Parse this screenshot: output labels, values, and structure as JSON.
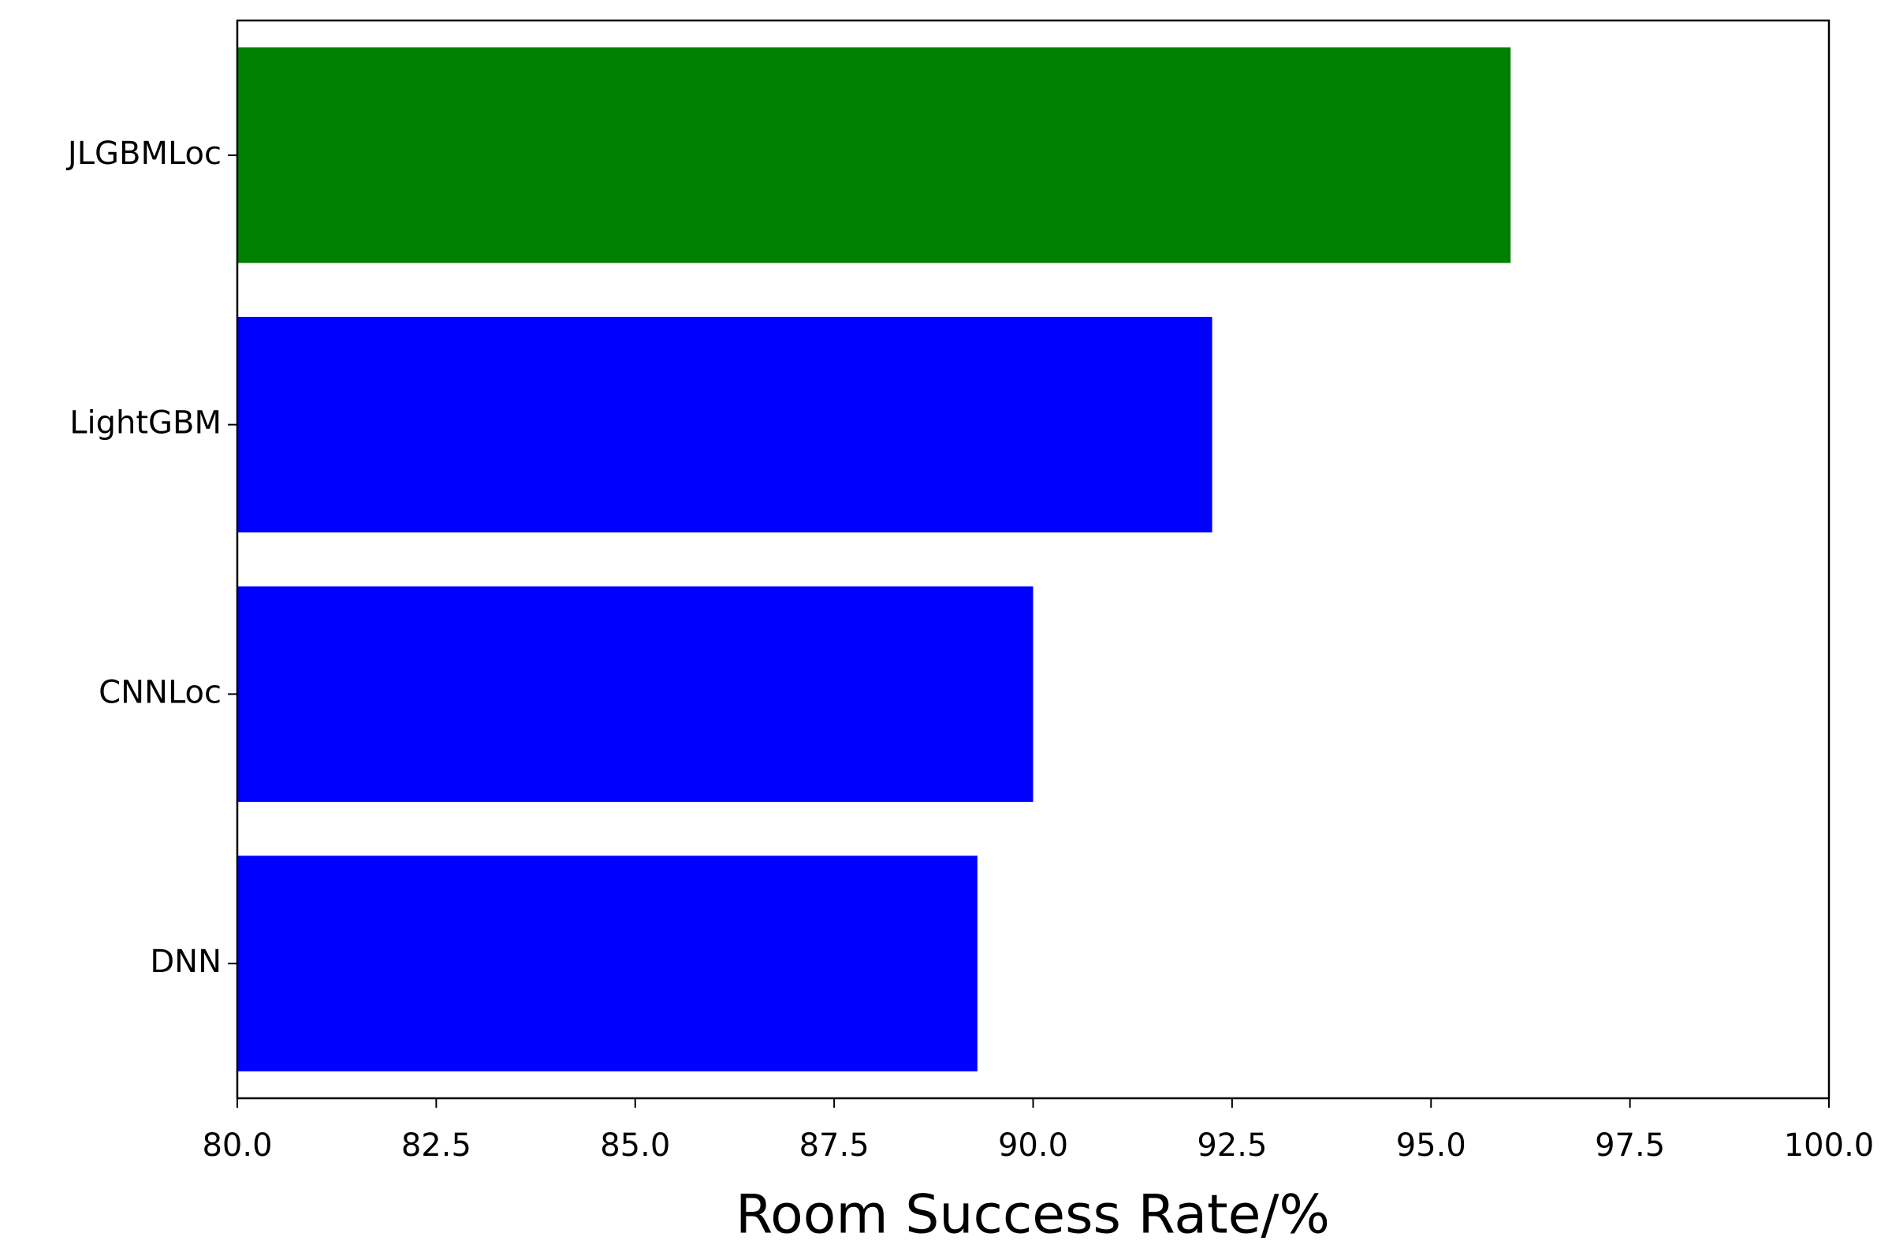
{
  "chart_data": {
    "type": "barh",
    "xlabel": "Room Success Rate/%",
    "categories": [
      "DNN",
      "CNNLoc",
      "LightGBM",
      "JLGBMLoc"
    ],
    "values": [
      89.3,
      90.0,
      92.25,
      96.0
    ],
    "colors": [
      "#0000ff",
      "#0000ff",
      "#0000ff",
      "#008000"
    ],
    "xlim": [
      80,
      100
    ],
    "xticks": [
      {
        "value": 80,
        "label": "80.0"
      },
      82.5,
      {
        "value": 85,
        "label": "85.0"
      },
      87.5,
      {
        "value": 90,
        "label": "90.0"
      },
      92.5,
      {
        "value": 95,
        "label": "95.0"
      },
      97.5,
      {
        "value": 100,
        "label": "100.0"
      }
    ],
    "grid": false
  }
}
